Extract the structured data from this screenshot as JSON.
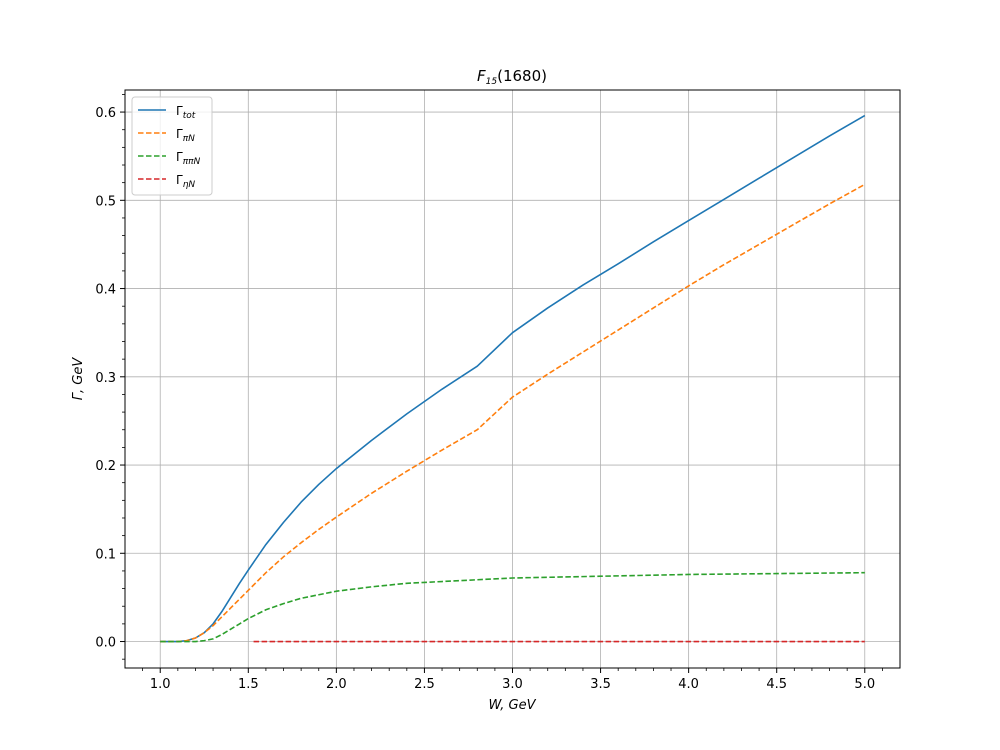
{
  "chart_data": {
    "type": "line",
    "title": {
      "main": "F",
      "sub": "15",
      "rest": "(1680)"
    },
    "xlabel": "W, GeV",
    "ylabel": "Γ,  GeV",
    "xlim": [
      0.8,
      5.2
    ],
    "ylim": [
      -0.03,
      0.625
    ],
    "xticks": [
      1.0,
      1.5,
      2.0,
      2.5,
      3.0,
      3.5,
      4.0,
      4.5,
      5.0
    ],
    "xtick_labels": [
      "1.0",
      "1.5",
      "2.0",
      "2.5",
      "3.0",
      "3.5",
      "4.0",
      "4.5",
      "5.0"
    ],
    "yticks": [
      0.0,
      0.1,
      0.2,
      0.3,
      0.4,
      0.5,
      0.6
    ],
    "ytick_labels": [
      "0.0",
      "0.1",
      "0.2",
      "0.3",
      "0.4",
      "0.5",
      "0.6"
    ],
    "grid": true,
    "legend_position": "top-left",
    "series": [
      {
        "name": "Γ",
        "sub": "tot",
        "color": "#1f77b4",
        "style": "solid",
        "x": [
          1.0,
          1.1,
          1.15,
          1.2,
          1.25,
          1.3,
          1.35,
          1.4,
          1.45,
          1.5,
          1.6,
          1.7,
          1.8,
          1.9,
          2.0,
          2.2,
          2.4,
          2.6,
          2.8,
          3.0,
          3.2,
          3.4,
          3.6,
          3.8,
          4.0,
          4.2,
          4.4,
          4.6,
          4.8,
          5.0
        ],
        "y": [
          0.0,
          0.0,
          0.001,
          0.004,
          0.01,
          0.02,
          0.034,
          0.05,
          0.066,
          0.081,
          0.11,
          0.135,
          0.158,
          0.178,
          0.196,
          0.228,
          0.258,
          0.286,
          0.312,
          0.35,
          0.378,
          0.404,
          0.428,
          0.453,
          0.477,
          0.501,
          0.525,
          0.549,
          0.573,
          0.596
        ]
      },
      {
        "name": "Γ",
        "sub": "πN",
        "color": "#ff7f0e",
        "style": "dashed",
        "x": [
          1.0,
          1.1,
          1.15,
          1.2,
          1.25,
          1.3,
          1.35,
          1.4,
          1.45,
          1.5,
          1.6,
          1.7,
          1.8,
          1.9,
          2.0,
          2.2,
          2.4,
          2.6,
          2.8,
          3.0,
          3.2,
          3.4,
          3.6,
          3.8,
          4.0,
          4.2,
          4.4,
          4.6,
          4.8,
          5.0
        ],
        "y": [
          0.0,
          0.0,
          0.001,
          0.004,
          0.01,
          0.018,
          0.028,
          0.038,
          0.048,
          0.058,
          0.078,
          0.096,
          0.112,
          0.127,
          0.141,
          0.168,
          0.193,
          0.217,
          0.24,
          0.277,
          0.303,
          0.328,
          0.353,
          0.378,
          0.403,
          0.427,
          0.45,
          0.473,
          0.496,
          0.518
        ]
      },
      {
        "name": "Γ",
        "sub": "ππN",
        "color": "#2ca02c",
        "style": "dashed",
        "x": [
          1.0,
          1.1,
          1.2,
          1.25,
          1.3,
          1.35,
          1.4,
          1.45,
          1.5,
          1.6,
          1.7,
          1.8,
          1.9,
          2.0,
          2.2,
          2.4,
          2.6,
          2.8,
          3.0,
          3.5,
          4.0,
          4.5,
          5.0
        ],
        "y": [
          0.0,
          0.0,
          0.0,
          0.001,
          0.003,
          0.008,
          0.014,
          0.02,
          0.026,
          0.036,
          0.043,
          0.049,
          0.053,
          0.057,
          0.062,
          0.066,
          0.068,
          0.07,
          0.072,
          0.074,
          0.076,
          0.077,
          0.078
        ]
      },
      {
        "name": "Γ",
        "sub": "ηN",
        "color": "#d62728",
        "style": "dashed",
        "x": [
          1.53,
          2.0,
          2.5,
          3.0,
          3.5,
          4.0,
          4.5,
          5.0
        ],
        "y": [
          0.0,
          0.0,
          0.0,
          0.0,
          0.0,
          0.0,
          0.0,
          0.0
        ]
      }
    ]
  }
}
